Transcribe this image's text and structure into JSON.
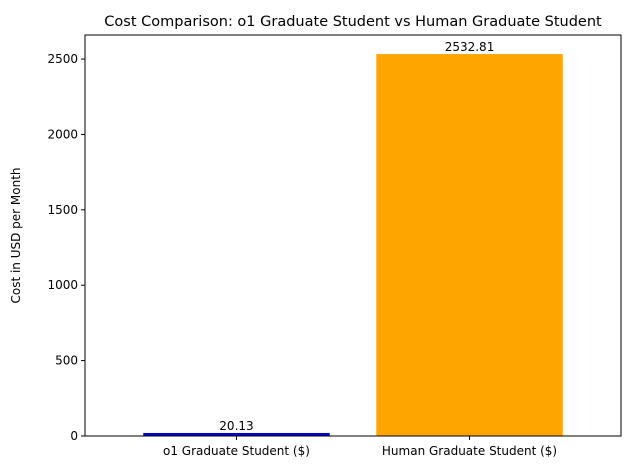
{
  "chart_data": {
    "type": "bar",
    "title": "Cost Comparison: o1 Graduate Student vs Human Graduate Student",
    "xlabel": "",
    "ylabel": "Cost in USD per Month",
    "categories": [
      "o1 Graduate Student ($)",
      "Human Graduate Student ($)"
    ],
    "values": [
      20.13,
      2532.81
    ],
    "value_labels": [
      "20.13",
      "2532.81"
    ],
    "colors": [
      "#0000cc",
      "#ffa500"
    ],
    "ylim": [
      0,
      2659.45
    ],
    "yticks": [
      0,
      500,
      1000,
      1500,
      2000,
      2500
    ],
    "grid": false
  }
}
